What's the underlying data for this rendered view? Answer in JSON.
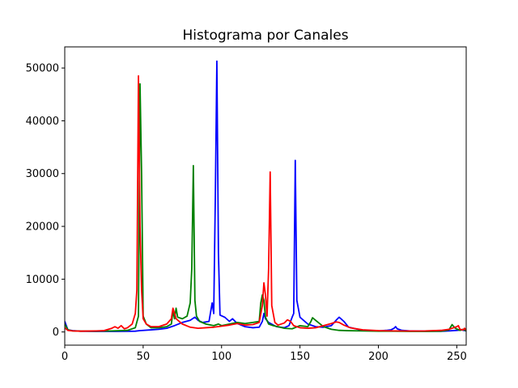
{
  "chart_data": {
    "type": "line",
    "title": "Histograma por Canales",
    "xlabel": "",
    "ylabel": "",
    "xlim": [
      0,
      256
    ],
    "ylim": [
      -2500,
      54000
    ],
    "grid": false,
    "legend": "none",
    "xticks": [
      0,
      50,
      100,
      150,
      200,
      250
    ],
    "yticks": [
      0,
      10000,
      20000,
      30000,
      40000,
      50000
    ],
    "series": [
      {
        "color": "#0000ff",
        "points": [
          [
            0,
            2000
          ],
          [
            2,
            400
          ],
          [
            5,
            250
          ],
          [
            10,
            150
          ],
          [
            20,
            100
          ],
          [
            30,
            100
          ],
          [
            40,
            120
          ],
          [
            45,
            150
          ],
          [
            48,
            250
          ],
          [
            50,
            300
          ],
          [
            55,
            400
          ],
          [
            60,
            500
          ],
          [
            65,
            700
          ],
          [
            70,
            1200
          ],
          [
            75,
            1800
          ],
          [
            80,
            2200
          ],
          [
            83,
            2800
          ],
          [
            85,
            2200
          ],
          [
            88,
            1800
          ],
          [
            92,
            2000
          ],
          [
            94,
            5500
          ],
          [
            95,
            3500
          ],
          [
            96,
            25000
          ],
          [
            97,
            51300
          ],
          [
            98,
            15000
          ],
          [
            99,
            3200
          ],
          [
            102,
            2800
          ],
          [
            105,
            2000
          ],
          [
            107,
            2500
          ],
          [
            110,
            1600
          ],
          [
            115,
            1000
          ],
          [
            120,
            800
          ],
          [
            124,
            900
          ],
          [
            126,
            2000
          ],
          [
            127,
            3500
          ],
          [
            128,
            2500
          ],
          [
            130,
            1800
          ],
          [
            135,
            1000
          ],
          [
            140,
            800
          ],
          [
            143,
            1200
          ],
          [
            145,
            2800
          ],
          [
            146,
            3500
          ],
          [
            147,
            32500
          ],
          [
            148,
            6000
          ],
          [
            150,
            2800
          ],
          [
            155,
            1500
          ],
          [
            160,
            1000
          ],
          [
            165,
            900
          ],
          [
            170,
            1200
          ],
          [
            173,
            2200
          ],
          [
            175,
            2800
          ],
          [
            178,
            2000
          ],
          [
            181,
            900
          ],
          [
            190,
            300
          ],
          [
            200,
            200
          ],
          [
            205,
            300
          ],
          [
            208,
            400
          ],
          [
            210,
            700
          ],
          [
            211,
            1000
          ],
          [
            212,
            600
          ],
          [
            215,
            300
          ],
          [
            220,
            200
          ],
          [
            230,
            150
          ],
          [
            240,
            120
          ],
          [
            245,
            200
          ],
          [
            250,
            300
          ],
          [
            253,
            400
          ],
          [
            256,
            200
          ]
        ]
      },
      {
        "color": "#008000",
        "points": [
          [
            0,
            1500
          ],
          [
            2,
            400
          ],
          [
            5,
            200
          ],
          [
            10,
            150
          ],
          [
            20,
            150
          ],
          [
            30,
            200
          ],
          [
            40,
            300
          ],
          [
            45,
            800
          ],
          [
            47,
            3000
          ],
          [
            48,
            47000
          ],
          [
            49,
            30000
          ],
          [
            50,
            3000
          ],
          [
            52,
            1500
          ],
          [
            55,
            800
          ],
          [
            60,
            800
          ],
          [
            65,
            1000
          ],
          [
            68,
            1500
          ],
          [
            69,
            4000
          ],
          [
            70,
            2500
          ],
          [
            71,
            4500
          ],
          [
            72,
            2800
          ],
          [
            75,
            2500
          ],
          [
            78,
            3000
          ],
          [
            80,
            5500
          ],
          [
            81,
            12000
          ],
          [
            82,
            31500
          ],
          [
            83,
            6000
          ],
          [
            84,
            3000
          ],
          [
            86,
            2000
          ],
          [
            90,
            1500
          ],
          [
            95,
            1200
          ],
          [
            98,
            1500
          ],
          [
            100,
            1200
          ],
          [
            105,
            1500
          ],
          [
            110,
            1800
          ],
          [
            115,
            1600
          ],
          [
            120,
            1800
          ],
          [
            124,
            2000
          ],
          [
            125,
            5500
          ],
          [
            126,
            7000
          ],
          [
            127,
            6000
          ],
          [
            128,
            2800
          ],
          [
            130,
            1500
          ],
          [
            133,
            1200
          ],
          [
            136,
            1000
          ],
          [
            140,
            700
          ],
          [
            145,
            600
          ],
          [
            150,
            1200
          ],
          [
            155,
            1000
          ],
          [
            157,
            2000
          ],
          [
            158,
            2700
          ],
          [
            160,
            2200
          ],
          [
            165,
            1000
          ],
          [
            170,
            500
          ],
          [
            175,
            300
          ],
          [
            180,
            250
          ],
          [
            190,
            200
          ],
          [
            200,
            150
          ],
          [
            210,
            150
          ],
          [
            220,
            100
          ],
          [
            230,
            100
          ],
          [
            240,
            150
          ],
          [
            245,
            400
          ],
          [
            247,
            1400
          ],
          [
            249,
            700
          ],
          [
            252,
            300
          ],
          [
            254,
            500
          ],
          [
            256,
            200
          ]
        ]
      },
      {
        "color": "#ff0000",
        "points": [
          [
            0,
            800
          ],
          [
            2,
            300
          ],
          [
            5,
            200
          ],
          [
            10,
            150
          ],
          [
            20,
            200
          ],
          [
            25,
            250
          ],
          [
            30,
            700
          ],
          [
            32,
            1000
          ],
          [
            34,
            700
          ],
          [
            36,
            1200
          ],
          [
            38,
            600
          ],
          [
            40,
            800
          ],
          [
            43,
            1500
          ],
          [
            45,
            3500
          ],
          [
            46,
            8000
          ],
          [
            47,
            48500
          ],
          [
            48,
            20000
          ],
          [
            49,
            8000
          ],
          [
            50,
            2500
          ],
          [
            52,
            1500
          ],
          [
            55,
            1000
          ],
          [
            60,
            1000
          ],
          [
            65,
            1500
          ],
          [
            68,
            2500
          ],
          [
            69,
            4500
          ],
          [
            70,
            3500
          ],
          [
            71,
            2500
          ],
          [
            75,
            1500
          ],
          [
            80,
            900
          ],
          [
            85,
            700
          ],
          [
            90,
            800
          ],
          [
            95,
            900
          ],
          [
            100,
            1100
          ],
          [
            105,
            1300
          ],
          [
            110,
            1600
          ],
          [
            115,
            1300
          ],
          [
            120,
            1400
          ],
          [
            124,
            1800
          ],
          [
            126,
            5000
          ],
          [
            127,
            9300
          ],
          [
            128,
            7000
          ],
          [
            129,
            3000
          ],
          [
            130,
            12000
          ],
          [
            131,
            30300
          ],
          [
            132,
            5000
          ],
          [
            134,
            1800
          ],
          [
            136,
            1300
          ],
          [
            140,
            1700
          ],
          [
            142,
            2300
          ],
          [
            144,
            2000
          ],
          [
            146,
            1200
          ],
          [
            150,
            800
          ],
          [
            155,
            700
          ],
          [
            160,
            800
          ],
          [
            165,
            1200
          ],
          [
            170,
            1600
          ],
          [
            173,
            1900
          ],
          [
            175,
            1800
          ],
          [
            178,
            1300
          ],
          [
            182,
            800
          ],
          [
            190,
            400
          ],
          [
            200,
            250
          ],
          [
            210,
            200
          ],
          [
            220,
            180
          ],
          [
            230,
            200
          ],
          [
            240,
            300
          ],
          [
            245,
            500
          ],
          [
            248,
            800
          ],
          [
            250,
            1000
          ],
          [
            251,
            1200
          ],
          [
            252,
            500
          ],
          [
            254,
            400
          ],
          [
            255,
            700
          ],
          [
            256,
            300
          ]
        ]
      }
    ]
  }
}
